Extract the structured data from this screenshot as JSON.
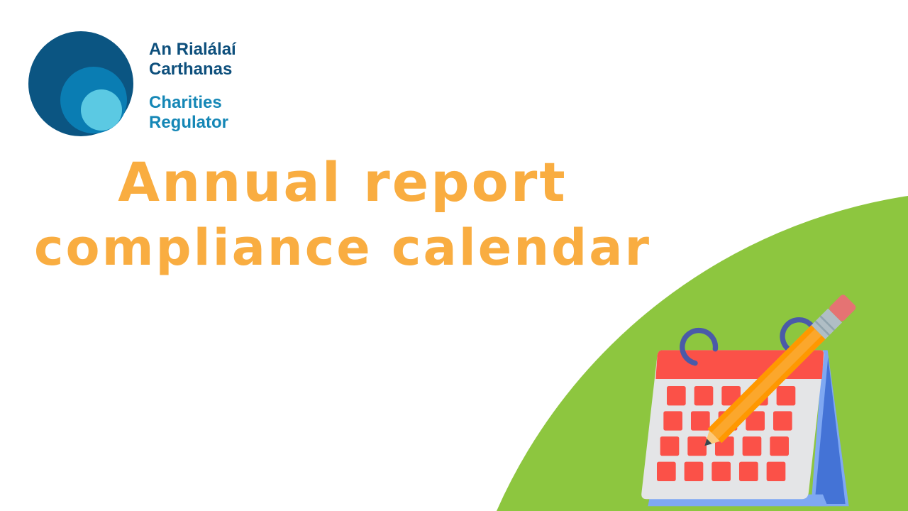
{
  "logo": {
    "irish_line1": "An Rialálaí",
    "irish_line2": "Carthanas",
    "english_line1": "Charities",
    "english_line2": "Regulator"
  },
  "title": {
    "line1": "Annual report",
    "line2": "compliance calendar"
  },
  "colors": {
    "title": "#f9ad41",
    "green": "#8dc63f",
    "logo_dark": "#0d4f7c",
    "logo_teal": "#1587b6"
  },
  "illustration": {
    "icon": "calendar-with-pencil-icon"
  }
}
